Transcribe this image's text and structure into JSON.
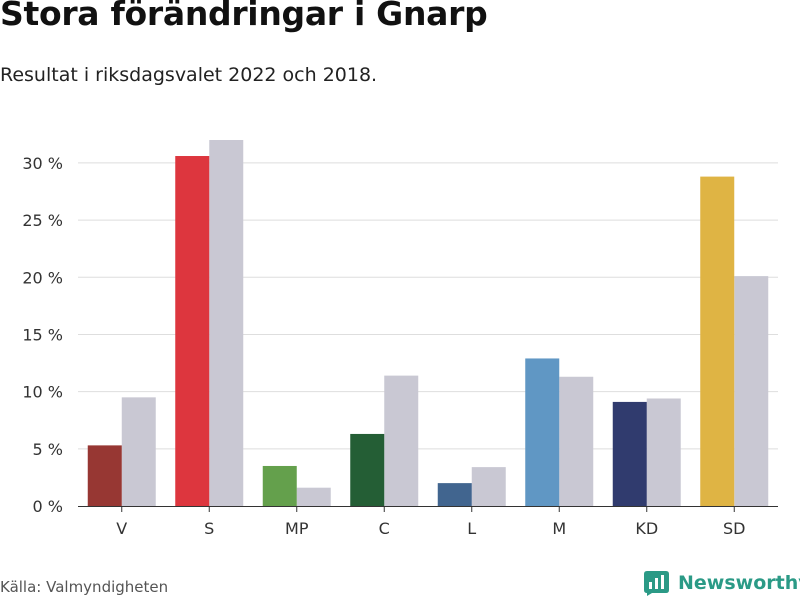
{
  "header": {
    "title": "Stora förändringar i Gnarp",
    "subtitle": "Resultat i riksdagsvalet 2022 och 2018."
  },
  "footer": {
    "source": "Källa: Valmyndigheten",
    "brand": "Newsworthy",
    "brand_icon": "bar-chart-icon"
  },
  "chart_data": {
    "type": "bar",
    "title": "Stora förändringar i Gnarp",
    "subtitle": "Resultat i riksdagsvalet 2022 och 2018.",
    "xlabel": "",
    "ylabel": "",
    "categories": [
      "V",
      "S",
      "MP",
      "C",
      "L",
      "M",
      "KD",
      "SD"
    ],
    "ylim": [
      0,
      32
    ],
    "yticks": [
      0,
      5,
      10,
      15,
      20,
      25,
      30
    ],
    "ytick_labels": [
      "0 %",
      "5 %",
      "10 %",
      "15 %",
      "20 %",
      "25 %",
      "30 %"
    ],
    "grid": true,
    "series": [
      {
        "name": "2022",
        "values": [
          5.3,
          30.6,
          3.5,
          6.3,
          2.0,
          12.9,
          9.1,
          28.8
        ],
        "colors": [
          "#973733",
          "#dd363e",
          "#64a04c",
          "#245e35",
          "#41658f",
          "#6097c4",
          "#303b6e",
          "#dfb444"
        ]
      },
      {
        "name": "2018",
        "values": [
          9.5,
          32.0,
          1.6,
          11.4,
          3.4,
          11.3,
          9.4,
          20.1
        ],
        "color": "#c9c8d3"
      }
    ]
  }
}
